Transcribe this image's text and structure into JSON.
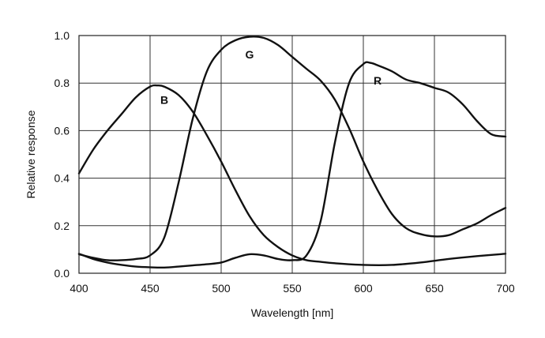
{
  "chart_data": {
    "type": "line",
    "title": "",
    "xlabel": "Wavelength [nm]",
    "ylabel": "Relative response",
    "xlim": [
      400,
      700
    ],
    "ylim": [
      0,
      1.0
    ],
    "grid": true,
    "legend": "none",
    "x_ticks": [
      "400",
      "450",
      "500",
      "550",
      "600",
      "650",
      "700"
    ],
    "y_ticks": [
      "0.0",
      "0.2",
      "0.4",
      "0.6",
      "0.8",
      "1.0"
    ],
    "series": [
      {
        "name": "B",
        "label_at": [
          460,
          0.73
        ],
        "points": [
          [
            400,
            0.42
          ],
          [
            410,
            0.52
          ],
          [
            420,
            0.6
          ],
          [
            430,
            0.67
          ],
          [
            440,
            0.74
          ],
          [
            450,
            0.785
          ],
          [
            455,
            0.79
          ],
          [
            460,
            0.785
          ],
          [
            470,
            0.75
          ],
          [
            480,
            0.68
          ],
          [
            490,
            0.58
          ],
          [
            500,
            0.47
          ],
          [
            510,
            0.35
          ],
          [
            520,
            0.24
          ],
          [
            530,
            0.16
          ],
          [
            540,
            0.11
          ],
          [
            550,
            0.075
          ],
          [
            560,
            0.055
          ],
          [
            570,
            0.048
          ],
          [
            580,
            0.042
          ],
          [
            600,
            0.035
          ],
          [
            620,
            0.035
          ],
          [
            640,
            0.045
          ],
          [
            660,
            0.06
          ],
          [
            680,
            0.072
          ],
          [
            700,
            0.082
          ]
        ]
      },
      {
        "name": "G",
        "label_at": [
          520,
          0.92
        ],
        "points": [
          [
            400,
            0.08
          ],
          [
            410,
            0.065
          ],
          [
            420,
            0.055
          ],
          [
            430,
            0.055
          ],
          [
            440,
            0.06
          ],
          [
            450,
            0.075
          ],
          [
            460,
            0.15
          ],
          [
            470,
            0.38
          ],
          [
            480,
            0.65
          ],
          [
            490,
            0.85
          ],
          [
            500,
            0.94
          ],
          [
            510,
            0.98
          ],
          [
            520,
            0.995
          ],
          [
            530,
            0.99
          ],
          [
            540,
            0.96
          ],
          [
            550,
            0.91
          ],
          [
            560,
            0.86
          ],
          [
            570,
            0.81
          ],
          [
            580,
            0.73
          ],
          [
            590,
            0.61
          ],
          [
            600,
            0.47
          ],
          [
            610,
            0.35
          ],
          [
            620,
            0.25
          ],
          [
            630,
            0.19
          ],
          [
            640,
            0.165
          ],
          [
            650,
            0.155
          ],
          [
            660,
            0.16
          ],
          [
            670,
            0.185
          ],
          [
            680,
            0.21
          ],
          [
            690,
            0.245
          ],
          [
            700,
            0.275
          ]
        ]
      },
      {
        "name": "R",
        "label_at": [
          610,
          0.81
        ],
        "points": [
          [
            400,
            0.082
          ],
          [
            410,
            0.06
          ],
          [
            420,
            0.045
          ],
          [
            430,
            0.035
          ],
          [
            440,
            0.028
          ],
          [
            450,
            0.025
          ],
          [
            460,
            0.024
          ],
          [
            470,
            0.028
          ],
          [
            480,
            0.033
          ],
          [
            490,
            0.038
          ],
          [
            500,
            0.045
          ],
          [
            510,
            0.065
          ],
          [
            520,
            0.08
          ],
          [
            530,
            0.075
          ],
          [
            540,
            0.06
          ],
          [
            550,
            0.055
          ],
          [
            560,
            0.075
          ],
          [
            570,
            0.22
          ],
          [
            580,
            0.55
          ],
          [
            590,
            0.8
          ],
          [
            600,
            0.88
          ],
          [
            605,
            0.885
          ],
          [
            610,
            0.875
          ],
          [
            620,
            0.85
          ],
          [
            630,
            0.815
          ],
          [
            640,
            0.8
          ],
          [
            650,
            0.78
          ],
          [
            660,
            0.76
          ],
          [
            670,
            0.71
          ],
          [
            680,
            0.64
          ],
          [
            690,
            0.585
          ],
          [
            700,
            0.575
          ]
        ]
      }
    ]
  }
}
